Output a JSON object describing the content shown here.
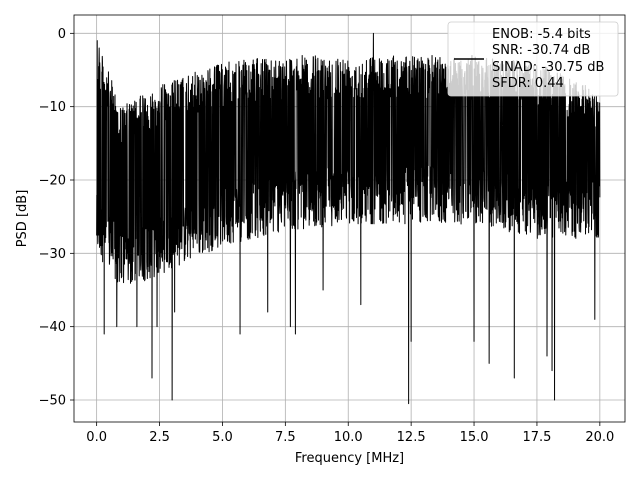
{
  "chart_data": {
    "type": "line",
    "title": "",
    "xlabel": "Frequency [MHz]",
    "ylabel": "PSD [dB]",
    "xlim": [
      -0.9,
      21.0
    ],
    "ylim": [
      -53,
      2.5
    ],
    "xticks": [
      0.0,
      2.5,
      5.0,
      7.5,
      10.0,
      12.5,
      15.0,
      17.5,
      20.0
    ],
    "xtick_labels": [
      "0.0",
      "2.5",
      "5.0",
      "7.5",
      "10.0",
      "12.5",
      "15.0",
      "17.5",
      "20.0"
    ],
    "yticks": [
      0,
      -10,
      -20,
      -30,
      -40,
      -50
    ],
    "ytick_labels": [
      "0",
      "−10",
      "−20",
      "−30",
      "−40",
      "−50"
    ],
    "grid": true,
    "legend_position": "top-right",
    "series": [
      {
        "name": "",
        "color": "#000000",
        "x_range": [
          0.0,
          20.0
        ],
        "typical_range_db": [
          -30,
          -5
        ],
        "envelope_x": [
          0.0,
          1.0,
          2.5,
          5.0,
          7.5,
          10.0,
          12.5,
          15.0,
          17.5,
          20.0
        ],
        "envelope_top_db": [
          -1,
          -10,
          -7,
          -4,
          -3,
          -3,
          -3,
          -3,
          -4,
          -8
        ],
        "envelope_bottom_db": [
          -30,
          -35,
          -33,
          -29,
          -27,
          -26,
          -26,
          -26,
          -28,
          -28
        ],
        "deep_nulls": [
          {
            "x": 0.3,
            "y": -41
          },
          {
            "x": 0.8,
            "y": -40
          },
          {
            "x": 1.6,
            "y": -40
          },
          {
            "x": 2.2,
            "y": -47
          },
          {
            "x": 2.4,
            "y": -40
          },
          {
            "x": 3.0,
            "y": -50
          },
          {
            "x": 3.1,
            "y": -38
          },
          {
            "x": 5.7,
            "y": -41
          },
          {
            "x": 6.8,
            "y": -38
          },
          {
            "x": 7.7,
            "y": -40
          },
          {
            "x": 7.9,
            "y": -41
          },
          {
            "x": 9.0,
            "y": -35
          },
          {
            "x": 10.5,
            "y": -37
          },
          {
            "x": 12.4,
            "y": -50.5
          },
          {
            "x": 12.5,
            "y": -42
          },
          {
            "x": 15.0,
            "y": -42
          },
          {
            "x": 15.6,
            "y": -45
          },
          {
            "x": 16.6,
            "y": -47
          },
          {
            "x": 17.9,
            "y": -44
          },
          {
            "x": 18.1,
            "y": -46
          },
          {
            "x": 18.2,
            "y": -50
          },
          {
            "x": 19.8,
            "y": -39
          }
        ],
        "peaks": [
          {
            "x": 0.02,
            "y": -1
          },
          {
            "x": 11.0,
            "y": 0
          },
          {
            "x": 0.1,
            "y": -2
          }
        ]
      }
    ],
    "legend": {
      "handle": "line",
      "entries": [
        "ENOB: -5.4 bits",
        "SNR: -30.74 dB",
        "SINAD: -30.75 dB",
        "SFDR: 0.44"
      ]
    }
  }
}
